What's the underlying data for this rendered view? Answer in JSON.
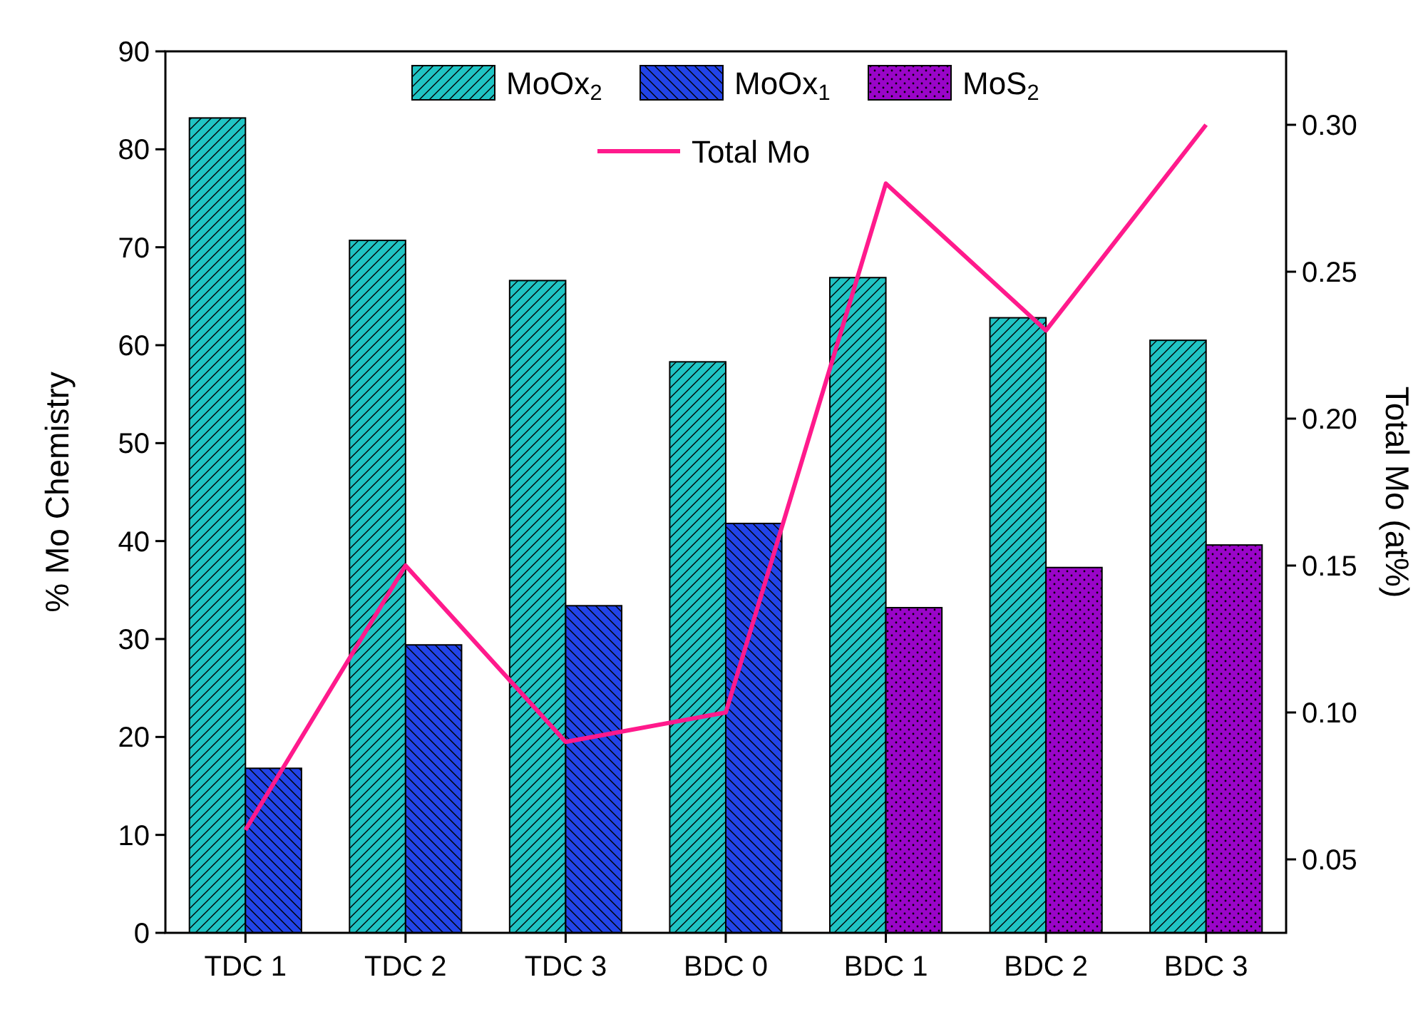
{
  "chart_data": {
    "type": "bar",
    "categories": [
      "TDC 1",
      "TDC 2",
      "TDC 3",
      "BDC 0",
      "BDC 1",
      "BDC 2",
      "BDC 3"
    ],
    "ylabel": "% Mo Chemistry",
    "y2label": "Total Mo (at%)",
    "ylim": [
      0,
      90
    ],
    "yticks": [
      0,
      10,
      20,
      30,
      40,
      50,
      60,
      70,
      80,
      90
    ],
    "y2lim": [
      0.025,
      0.325
    ],
    "y2ticks": [
      {
        "value": 0.05,
        "label": "0.05"
      },
      {
        "value": 0.1,
        "label": "0.10"
      },
      {
        "value": 0.15,
        "label": "0.15"
      },
      {
        "value": 0.2,
        "label": "0.20"
      },
      {
        "value": 0.25,
        "label": "0.25"
      },
      {
        "value": 0.3,
        "label": "0.30"
      }
    ],
    "legend": "top",
    "grid": false,
    "series": [
      {
        "name": "MoOx$_{2}$",
        "color": "#20c4c4",
        "values": [
          83.2,
          70.7,
          66.6,
          58.3,
          66.9,
          62.8,
          60.5
        ]
      },
      {
        "name": "MoOx$_{1}$",
        "color": "#2244e8",
        "values": [
          16.8,
          29.4,
          33.4,
          41.8,
          null,
          null,
          null
        ]
      },
      {
        "name": "MoS$_{2}$",
        "color": "#9a05c8",
        "values": [
          null,
          null,
          null,
          null,
          33.2,
          37.3,
          39.6
        ]
      },
      {
        "name": "Total Mo",
        "type": "line",
        "axis": "y2",
        "color": "#ff1a8c",
        "values": [
          0.06,
          0.15,
          0.09,
          0.1,
          0.28,
          0.23,
          0.3
        ]
      }
    ]
  }
}
